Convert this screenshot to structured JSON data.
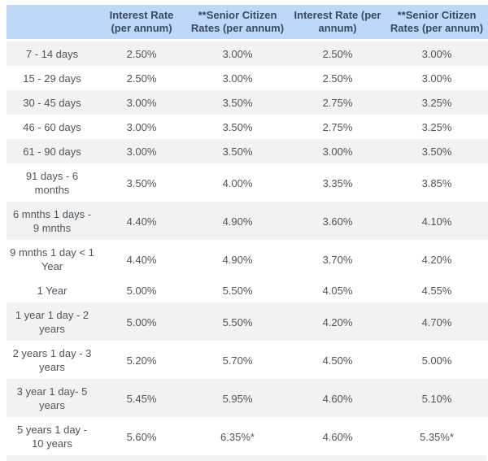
{
  "colors": {
    "header_bg": "#bdd8f8",
    "header_text": "#374a60",
    "body_text": "#4d565e",
    "row_alt_bg": "#f2f2f2"
  },
  "table": {
    "columns": [
      {
        "label": ""
      },
      {
        "label": "Interest Rate (per annum)"
      },
      {
        "label": "**Senior Citizen Rates (per annum)"
      },
      {
        "label": "Interest Rate (per annum)"
      },
      {
        "label": "**Senior Citizen Rates (per annum)"
      }
    ],
    "rows": [
      {
        "tenure": "7 - 14 days",
        "values": [
          "2.50%",
          "3.00%",
          "2.50%",
          "3.00%"
        ],
        "shaded": true
      },
      {
        "tenure": "15 - 29 days",
        "values": [
          "2.50%",
          "3.00%",
          "2.50%",
          "3.00%"
        ],
        "shaded": false
      },
      {
        "tenure": "30 - 45 days",
        "values": [
          "3.00%",
          "3.50%",
          "2.75%",
          "3.25%"
        ],
        "shaded": true
      },
      {
        "tenure": "46 - 60 days",
        "values": [
          "3.00%",
          "3.50%",
          "2.75%",
          "3.25%"
        ],
        "shaded": false
      },
      {
        "tenure": "61 - 90 days",
        "values": [
          "3.00%",
          "3.50%",
          "3.00%",
          "3.50%"
        ],
        "shaded": true
      },
      {
        "tenure": "91 days - 6 months",
        "values": [
          "3.50%",
          "4.00%",
          "3.35%",
          "3.85%"
        ],
        "shaded": false
      },
      {
        "tenure": "6 mnths 1 days - 9 mnths",
        "values": [
          "4.40%",
          "4.90%",
          "3.60%",
          "4.10%"
        ],
        "shaded": true
      },
      {
        "tenure": "9 mnths 1 day < 1 Year",
        "values": [
          "4.40%",
          "4.90%",
          "3.70%",
          "4.20%"
        ],
        "shaded": false
      },
      {
        "tenure": "1 Year",
        "values": [
          "5.00%",
          "5.50%",
          "4.05%",
          "4.55%"
        ],
        "shaded": false
      },
      {
        "tenure": "1 year 1 day - 2 years",
        "values": [
          "5.00%",
          "5.50%",
          "4.20%",
          "4.70%"
        ],
        "shaded": true
      },
      {
        "tenure": "2 years 1 day - 3 years",
        "values": [
          "5.20%",
          "5.70%",
          "4.50%",
          "5.00%"
        ],
        "shaded": false
      },
      {
        "tenure": "3 year 1 day- 5 years",
        "values": [
          "5.45%",
          "5.95%",
          "4.60%",
          "5.10%"
        ],
        "shaded": true
      },
      {
        "tenure": "5 years 1 day - 10 years",
        "values": [
          "5.60%",
          "6.35%*",
          "4.60%",
          "5.35%*"
        ],
        "shaded": false
      }
    ]
  }
}
